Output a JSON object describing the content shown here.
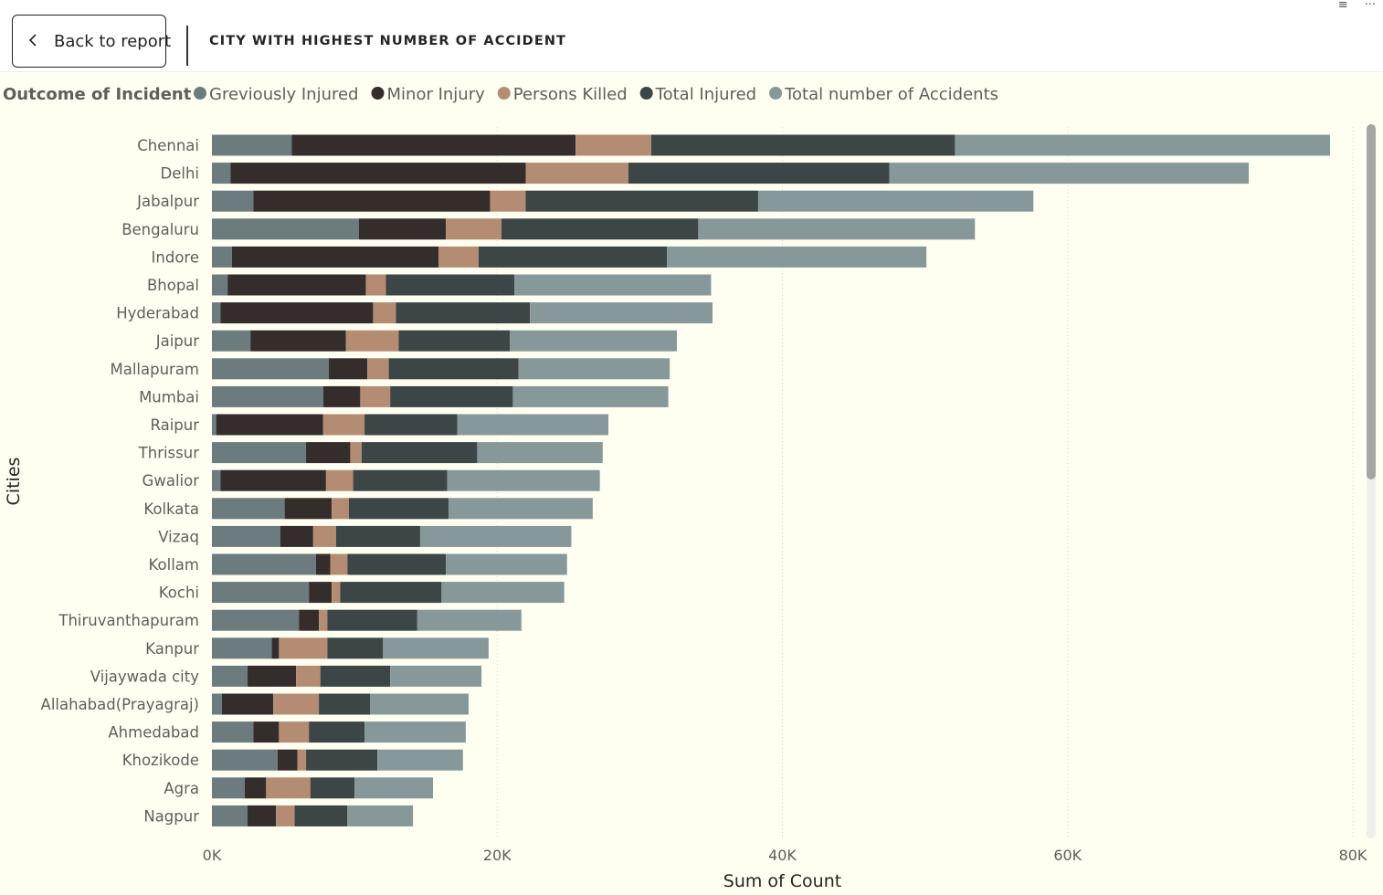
{
  "header": {
    "back_label": "Back to report",
    "back_icon": "chevron-left-icon",
    "title": "CITY WITH HIGHEST NUMBER OF ACCIDENT",
    "icons": [
      "filter-icon",
      "more-options-icon"
    ]
  },
  "colors": {
    "background": "#fffff1",
    "grievously": "#6b7b7e",
    "minor": "#352c2c",
    "killed": "#b48c73",
    "total_injured": "#3d4646",
    "total_accidents": "#87989b"
  },
  "chart_data": {
    "type": "bar",
    "orientation": "horizontal",
    "stacked": true,
    "legend_title": "Outcome of Incident",
    "legend_position": "top-left",
    "xlabel": "Sum of Count",
    "ylabel": "Cities",
    "xlim": [
      0,
      80000
    ],
    "xticks": [
      "0K",
      "20K",
      "40K",
      "60K",
      "80K"
    ],
    "grid": "vertical dotted",
    "categories": [
      "Chennai",
      "Delhi",
      "Jabalpur",
      "Bengaluru",
      "Indore",
      "Bhopal",
      "Hyderabad",
      "Jaipur",
      "Mallapuram",
      "Mumbai",
      "Raipur",
      "Thrissur",
      "Gwalior",
      "Kolkata",
      "Vizaq",
      "Kollam",
      "Kochi",
      "Thiruvanthapuram",
      "Kanpur",
      "Vijaywada city",
      "Allahabad(Prayagraj)",
      "Ahmedabad",
      "Khozikode",
      "Agra",
      "Nagpur"
    ],
    "series": [
      {
        "name": "Greviously Injured",
        "color": "#6b7b7e",
        "values": [
          5600,
          1300,
          2900,
          10300,
          1400,
          1100,
          600,
          2700,
          8200,
          7800,
          300,
          6600,
          600,
          5100,
          4800,
          7300,
          6800,
          6100,
          4200,
          2500,
          700,
          2900,
          4600,
          2300,
          2500
        ]
      },
      {
        "name": "Minor Injury",
        "color": "#352c2c",
        "values": [
          19900,
          20700,
          16600,
          6100,
          14500,
          9700,
          10700,
          6700,
          2700,
          2600,
          7500,
          3100,
          7400,
          3300,
          2300,
          1000,
          1600,
          1400,
          500,
          3400,
          3600,
          1800,
          1400,
          1500,
          2000
        ]
      },
      {
        "name": "Persons Killed",
        "color": "#b48c73",
        "values": [
          5300,
          7200,
          2500,
          3900,
          2800,
          1400,
          1600,
          3700,
          1500,
          2100,
          2900,
          800,
          1900,
          1200,
          1600,
          1200,
          600,
          600,
          3400,
          1700,
          3200,
          2100,
          600,
          3100,
          1300
        ]
      },
      {
        "name": "Total Injured",
        "color": "#3d4646",
        "values": [
          21300,
          18300,
          16300,
          13800,
          13200,
          9000,
          9400,
          7800,
          9100,
          8600,
          6500,
          8100,
          6600,
          7000,
          5900,
          6900,
          7100,
          6300,
          3900,
          4900,
          3600,
          3900,
          5000,
          3100,
          3700
        ]
      },
      {
        "name": "Total number of Accidents",
        "color": "#87989b",
        "values": [
          26300,
          25200,
          19300,
          19400,
          18200,
          13800,
          12800,
          11700,
          10600,
          10900,
          10600,
          8800,
          10700,
          10100,
          10600,
          8500,
          8600,
          7300,
          7400,
          6400,
          6900,
          7100,
          6000,
          5500,
          4600
        ]
      }
    ]
  }
}
